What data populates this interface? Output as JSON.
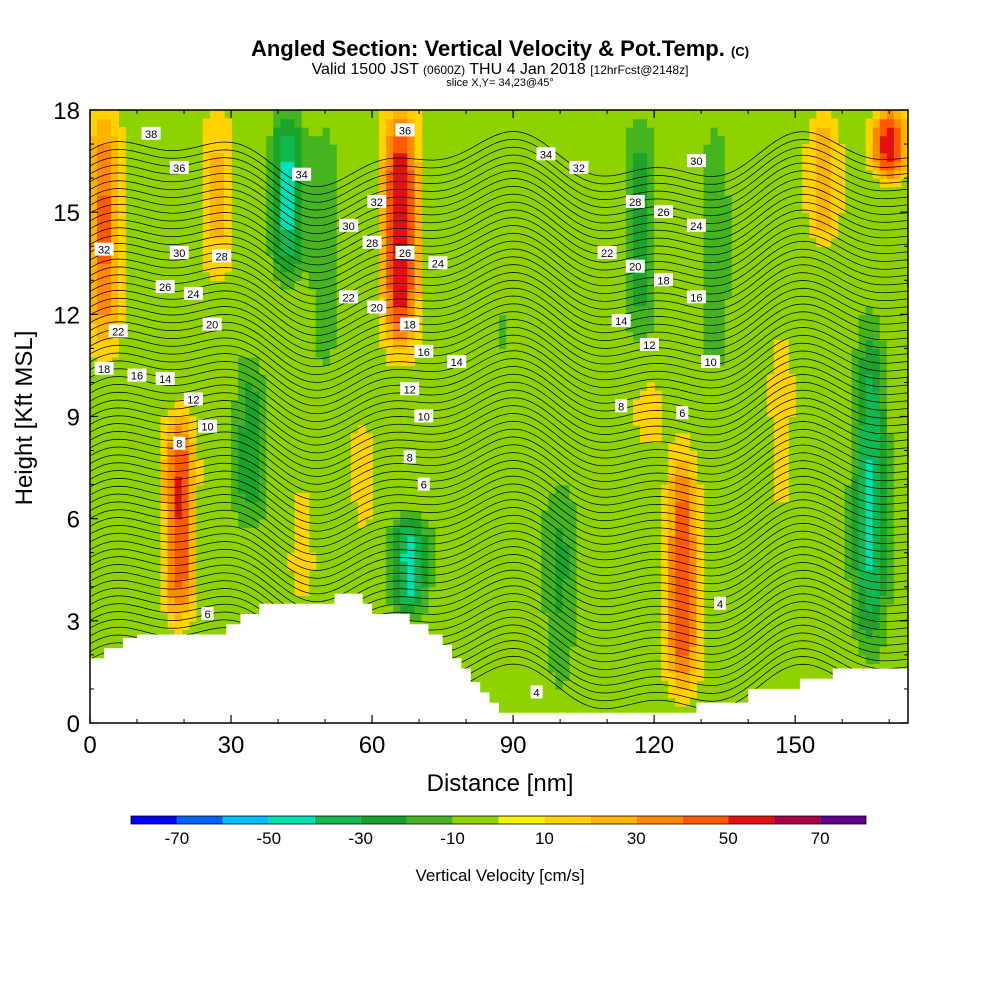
{
  "title": {
    "main": "Angled Section: Vertical Velocity & Pot.Temp.",
    "main_unit": "(C)",
    "valid_prefix": "Valid 1500 JST",
    "valid_utc": "(0600Z)",
    "valid_date": "THU 4 Jan 2018",
    "valid_fcst": "[12hrFcst@2148z]",
    "slice": "slice X,Y= 34,23@45°"
  },
  "chart_data": {
    "type": "heatmap",
    "xlabel": "Distance [nm]",
    "ylabel": "Height [Kft MSL]",
    "xlim": [
      0,
      174
    ],
    "ylim": [
      0,
      18
    ],
    "x_ticks": [
      0,
      30,
      60,
      90,
      120,
      150
    ],
    "y_ticks": [
      0,
      3,
      6,
      9,
      12,
      15,
      18
    ],
    "colorbar": {
      "label": "Vertical Velocity [cm/s]",
      "tick_labels": [
        -70,
        -50,
        -30,
        -10,
        10,
        30,
        50,
        70
      ],
      "bounds": [
        -80,
        -70,
        -60,
        -50,
        -40,
        -30,
        -20,
        -10,
        0,
        10,
        20,
        30,
        40,
        50,
        60,
        70,
        80
      ],
      "colors": [
        "#0000ff",
        "#0062ff",
        "#00c0ff",
        "#00e0b0",
        "#10b850",
        "#1aa32a",
        "#45b41f",
        "#8fd200",
        "#f2f200",
        "#ffd200",
        "#ffb400",
        "#ff8a00",
        "#ff5a00",
        "#e21010",
        "#a8004a",
        "#600090"
      ]
    },
    "terrain": [
      [
        0,
        1.9
      ],
      [
        3,
        1.9
      ],
      [
        3,
        2.2
      ],
      [
        7,
        2.2
      ],
      [
        7,
        2.5
      ],
      [
        10,
        2.5
      ],
      [
        10,
        2.6
      ],
      [
        29,
        2.6
      ],
      [
        29,
        2.9
      ],
      [
        32,
        2.9
      ],
      [
        32,
        3.2
      ],
      [
        36,
        3.2
      ],
      [
        36,
        3.5
      ],
      [
        52,
        3.5
      ],
      [
        52,
        3.8
      ],
      [
        58,
        3.8
      ],
      [
        58,
        3.5
      ],
      [
        60,
        3.5
      ],
      [
        60,
        3.2
      ],
      [
        68,
        3.2
      ],
      [
        68,
        2.9
      ],
      [
        72,
        2.9
      ],
      [
        72,
        2.6
      ],
      [
        75,
        2.6
      ],
      [
        75,
        2.3
      ],
      [
        77,
        2.3
      ],
      [
        77,
        1.9
      ],
      [
        79,
        1.9
      ],
      [
        79,
        1.6
      ],
      [
        81,
        1.6
      ],
      [
        81,
        1.2
      ],
      [
        83,
        1.2
      ],
      [
        83,
        0.9
      ],
      [
        85,
        0.9
      ],
      [
        85,
        0.6
      ],
      [
        87,
        0.6
      ],
      [
        87,
        0.3
      ],
      [
        129,
        0.3
      ],
      [
        129,
        0.6
      ],
      [
        140,
        0.6
      ],
      [
        140,
        1.0
      ],
      [
        151,
        1.0
      ],
      [
        151,
        1.3
      ],
      [
        158,
        1.3
      ],
      [
        158,
        1.6
      ],
      [
        174,
        1.6
      ]
    ],
    "w_columns": [
      {
        "x": 3,
        "w": 40,
        "top": 18,
        "bot": 11
      },
      {
        "x": 19,
        "w": 55,
        "top": 9,
        "bot": 3
      },
      {
        "x": 27,
        "w": 20,
        "top": 18,
        "bot": 13
      },
      {
        "x": 34,
        "w": -25,
        "top": 11,
        "bot": 6
      },
      {
        "x": 42,
        "w": -45,
        "top": 18,
        "bot": 13
      },
      {
        "x": 45,
        "w": 22,
        "top": 7,
        "bot": 3.5
      },
      {
        "x": 50,
        "w": -20,
        "top": 18,
        "bot": 10
      },
      {
        "x": 58,
        "w": 18,
        "top": 9,
        "bot": 5
      },
      {
        "x": 66,
        "w": 60,
        "top": 18,
        "bot": 11
      },
      {
        "x": 68,
        "w": -40,
        "top": 6,
        "bot": 3.2
      },
      {
        "x": 78,
        "w": 8,
        "top": 18,
        "bot": 10
      },
      {
        "x": 88,
        "w": -12,
        "top": 15,
        "bot": 9
      },
      {
        "x": 100,
        "w": -18,
        "top": 7,
        "bot": 0.5
      },
      {
        "x": 117,
        "w": -28,
        "top": 18,
        "bot": 11
      },
      {
        "x": 119,
        "w": 18,
        "top": 10,
        "bot": 8
      },
      {
        "x": 126,
        "w": 52,
        "top": 8,
        "bot": 1
      },
      {
        "x": 133,
        "w": -22,
        "top": 18,
        "bot": 10
      },
      {
        "x": 147,
        "w": 15,
        "top": 12,
        "bot": 2
      },
      {
        "x": 156,
        "w": 25,
        "top": 18,
        "bot": 14
      },
      {
        "x": 166,
        "w": -38,
        "top": 12,
        "bot": 2
      },
      {
        "x": 170,
        "w": 55,
        "top": 18,
        "bot": 16
      }
    ],
    "isentropes": {
      "levels": [
        4,
        6,
        8,
        10,
        12,
        14,
        16,
        18,
        20,
        22,
        24,
        26,
        28,
        30,
        32,
        34,
        36,
        38
      ],
      "contour_labels": [
        {
          "text": "38",
          "x": 13,
          "y": 17.3
        },
        {
          "text": "36",
          "x": 19,
          "y": 16.3
        },
        {
          "text": "34",
          "x": 45,
          "y": 16.1
        },
        {
          "text": "36",
          "x": 67,
          "y": 17.4
        },
        {
          "text": "34",
          "x": 97,
          "y": 16.7
        },
        {
          "text": "32",
          "x": 104,
          "y": 16.3
        },
        {
          "text": "30",
          "x": 129,
          "y": 16.5
        },
        {
          "text": "32",
          "x": 3,
          "y": 13.9
        },
        {
          "text": "30",
          "x": 19,
          "y": 13.8
        },
        {
          "text": "28",
          "x": 28,
          "y": 13.7
        },
        {
          "text": "32",
          "x": 61,
          "y": 15.3
        },
        {
          "text": "30",
          "x": 55,
          "y": 14.6
        },
        {
          "text": "28",
          "x": 60,
          "y": 14.1
        },
        {
          "text": "26",
          "x": 67,
          "y": 13.8
        },
        {
          "text": "24",
          "x": 74,
          "y": 13.5
        },
        {
          "text": "28",
          "x": 116,
          "y": 15.3
        },
        {
          "text": "26",
          "x": 122,
          "y": 15.0
        },
        {
          "text": "24",
          "x": 129,
          "y": 14.6
        },
        {
          "text": "22",
          "x": 110,
          "y": 13.8
        },
        {
          "text": "20",
          "x": 116,
          "y": 13.4
        },
        {
          "text": "18",
          "x": 122,
          "y": 13.0
        },
        {
          "text": "26",
          "x": 16,
          "y": 12.8
        },
        {
          "text": "24",
          "x": 22,
          "y": 12.6
        },
        {
          "text": "22",
          "x": 55,
          "y": 12.5
        },
        {
          "text": "20",
          "x": 61,
          "y": 12.2
        },
        {
          "text": "16",
          "x": 129,
          "y": 12.5
        },
        {
          "text": "22",
          "x": 6,
          "y": 11.5
        },
        {
          "text": "20",
          "x": 26,
          "y": 11.7
        },
        {
          "text": "18",
          "x": 68,
          "y": 11.7
        },
        {
          "text": "14",
          "x": 113,
          "y": 11.8
        },
        {
          "text": "16",
          "x": 71,
          "y": 10.9
        },
        {
          "text": "12",
          "x": 119,
          "y": 11.1
        },
        {
          "text": "18",
          "x": 3,
          "y": 10.4
        },
        {
          "text": "16",
          "x": 10,
          "y": 10.2
        },
        {
          "text": "14",
          "x": 16,
          "y": 10.1
        },
        {
          "text": "14",
          "x": 78,
          "y": 10.6
        },
        {
          "text": "10",
          "x": 132,
          "y": 10.6
        },
        {
          "text": "12",
          "x": 22,
          "y": 9.5
        },
        {
          "text": "12",
          "x": 68,
          "y": 9.8
        },
        {
          "text": "8",
          "x": 113,
          "y": 9.3
        },
        {
          "text": "10",
          "x": 25,
          "y": 8.7
        },
        {
          "text": "10",
          "x": 71,
          "y": 9.0
        },
        {
          "text": "6",
          "x": 126,
          "y": 9.1
        },
        {
          "text": "8",
          "x": 19,
          "y": 8.2
        },
        {
          "text": "8",
          "x": 68,
          "y": 7.8
        },
        {
          "text": "6",
          "x": 71,
          "y": 7.0
        },
        {
          "text": "6",
          "x": 25,
          "y": 3.2
        },
        {
          "text": "4",
          "x": 134,
          "y": 3.5
        },
        {
          "text": "4",
          "x": 95,
          "y": 0.9
        }
      ]
    }
  }
}
